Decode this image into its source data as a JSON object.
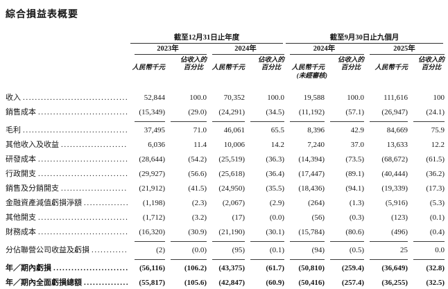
{
  "page": {
    "title": "綜合損益表概要"
  },
  "table": {
    "groups": [
      {
        "label": "截至12月31日止年度",
        "years": [
          "2023年",
          "2024年"
        ]
      },
      {
        "label": "截至9月30日止九個月",
        "years": [
          "2024年",
          "2025年"
        ]
      }
    ],
    "col_headers": {
      "amount": "人民幣千元",
      "pct_line1": "佔收入的",
      "pct_line2": "百分比",
      "unaudited": "(未經審核)"
    },
    "rows": [
      {
        "label": "收入",
        "values": [
          "52,844",
          "100.0",
          "70,352",
          "100.0",
          "19,588",
          "100.0",
          "111,616",
          "100"
        ],
        "bold": false,
        "rule_below": false
      },
      {
        "label": "銷售成本",
        "values": [
          "(15,349)",
          "(29.0)",
          "(24,291)",
          "(34.5)",
          "(11,192)",
          "(57.1)",
          "(26,947)",
          "(24.1)"
        ],
        "bold": false,
        "rule_below": true
      },
      {
        "label": "毛利",
        "values": [
          "37,495",
          "71.0",
          "46,061",
          "65.5",
          "8,396",
          "42.9",
          "84,669",
          "75.9"
        ],
        "bold": false,
        "rule_below": false
      },
      {
        "label": "其他收入及收益",
        "values": [
          "6,036",
          "11.4",
          "10,006",
          "14.2",
          "7,240",
          "37.0",
          "13,633",
          "12.2"
        ],
        "bold": false,
        "rule_below": false
      },
      {
        "label": "研發成本",
        "values": [
          "(28,644)",
          "(54.2)",
          "(25,519)",
          "(36.3)",
          "(14,394)",
          "(73.5)",
          "(68,672)",
          "(61.5)"
        ],
        "bold": false,
        "rule_below": false
      },
      {
        "label": "行政開支",
        "values": [
          "(29,927)",
          "(56.6)",
          "(25,618)",
          "(36.4)",
          "(17,447)",
          "(89.1)",
          "(40,444)",
          "(36.2)"
        ],
        "bold": false,
        "rule_below": false
      },
      {
        "label": "銷售及分銷開支",
        "values": [
          "(21,912)",
          "(41.5)",
          "(24,950)",
          "(35.5)",
          "(18,436)",
          "(94.1)",
          "(19,339)",
          "(17.3)"
        ],
        "bold": false,
        "rule_below": false
      },
      {
        "label": "金融資產減值虧損淨額",
        "values": [
          "(1,198)",
          "(2.3)",
          "(2,067)",
          "(2.9)",
          "(264)",
          "(1.3)",
          "(5,916)",
          "(5.3)"
        ],
        "bold": false,
        "rule_below": false
      },
      {
        "label": "其他開支",
        "values": [
          "(1,712)",
          "(3.2)",
          "(17)",
          "(0.0)",
          "(56)",
          "(0.3)",
          "(123)",
          "(0.1)"
        ],
        "bold": false,
        "rule_below": false
      },
      {
        "label": "財務成本",
        "values": [
          "(16,320)",
          "(30.9)",
          "(21,190)",
          "(30.1)",
          "(15,784)",
          "(80.6)",
          "(496)",
          "(0.4)"
        ],
        "bold": false,
        "rule_below": true
      },
      {
        "label": "分佔聯營公司收益及虧損",
        "values": [
          "(2)",
          "(0.0)",
          "(95)",
          "(0.1)",
          "(94)",
          "(0.5)",
          "25",
          "0.0"
        ],
        "bold": false,
        "rule_below": true
      },
      {
        "label": "年／期內虧損",
        "values": [
          "(56,116)",
          "(106.2)",
          "(43,375)",
          "(61.7)",
          "(50,810)",
          "(259.4)",
          "(36,649)",
          "(32.8)"
        ],
        "bold": true,
        "rule_below": false
      },
      {
        "label": "年／期內全面虧損總額",
        "values": [
          "(55,817)",
          "(105.6)",
          "(42,847)",
          "(60.9)",
          "(50,416)",
          "(257.4)",
          "(36,255)",
          "(32.5)"
        ],
        "bold": true,
        "rule_below": false
      }
    ]
  }
}
